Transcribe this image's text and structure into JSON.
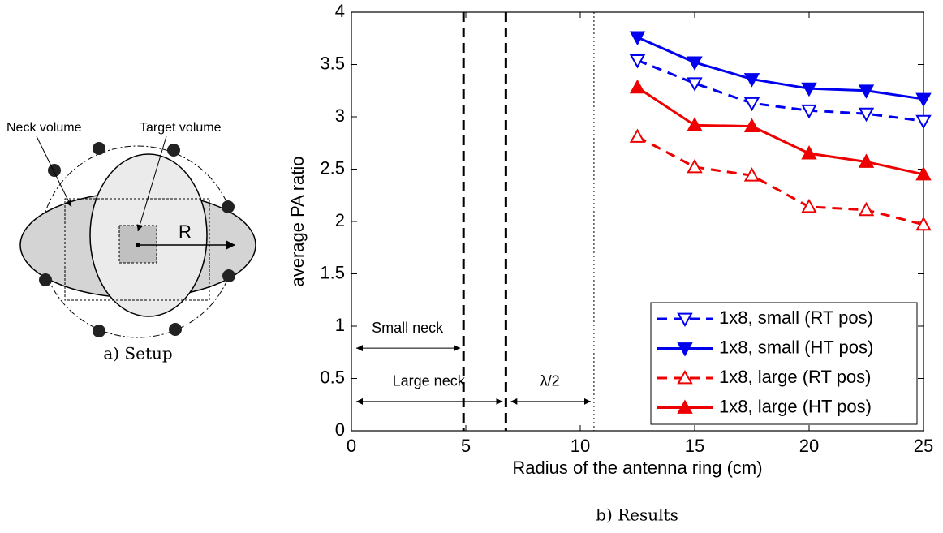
{
  "diagram": {
    "labels": {
      "neck": "Neck volume",
      "target": "Target volume",
      "radius": "R"
    },
    "caption": "a) Setup"
  },
  "chart_data": {
    "type": "line",
    "caption": "b) Results",
    "xlabel": "Radius of the antenna ring (cm)",
    "ylabel": "average PA ratio",
    "x": [
      12.5,
      15,
      17.5,
      20,
      22.5,
      25
    ],
    "series": [
      {
        "name": "1x8, small (RT pos)",
        "color": "#0000ee",
        "dash": true,
        "marker": "down",
        "values": [
          3.54,
          3.32,
          3.13,
          3.06,
          3.03,
          2.96
        ]
      },
      {
        "name": "1x8, small (HT pos)",
        "color": "#0000ee",
        "dash": false,
        "marker": "down",
        "values": [
          3.76,
          3.52,
          3.36,
          3.27,
          3.25,
          3.17
        ]
      },
      {
        "name": "1x8, large (RT pos)",
        "color": "#ee0000",
        "dash": true,
        "marker": "up",
        "values": [
          2.81,
          2.52,
          2.44,
          2.14,
          2.11,
          1.97
        ]
      },
      {
        "name": "1x8, large (HT pos)",
        "color": "#ee0000",
        "dash": false,
        "marker": "up",
        "values": [
          3.28,
          2.92,
          2.91,
          2.65,
          2.57,
          2.45
        ]
      }
    ],
    "xlim": [
      0,
      25
    ],
    "xticks": [
      0,
      5,
      10,
      15,
      20,
      25
    ],
    "ylim": [
      0,
      4
    ],
    "yticks": [
      0,
      0.5,
      1,
      1.5,
      2,
      2.5,
      3,
      3.5,
      4
    ],
    "vlines": [
      {
        "x": 4.9,
        "style": "dashed"
      },
      {
        "x": 6.75,
        "style": "dashed"
      },
      {
        "x": 10.6,
        "style": "dotted"
      }
    ],
    "annotations": [
      {
        "text": "Small neck",
        "x": [
          0,
          4.9
        ],
        "y": 0.79
      },
      {
        "text": "Large neck",
        "x": [
          0,
          6.75
        ],
        "y": 0.28
      },
      {
        "text": "λ/2",
        "x": [
          6.75,
          10.6
        ],
        "y": 0.28
      }
    ],
    "legend": "lower right"
  }
}
